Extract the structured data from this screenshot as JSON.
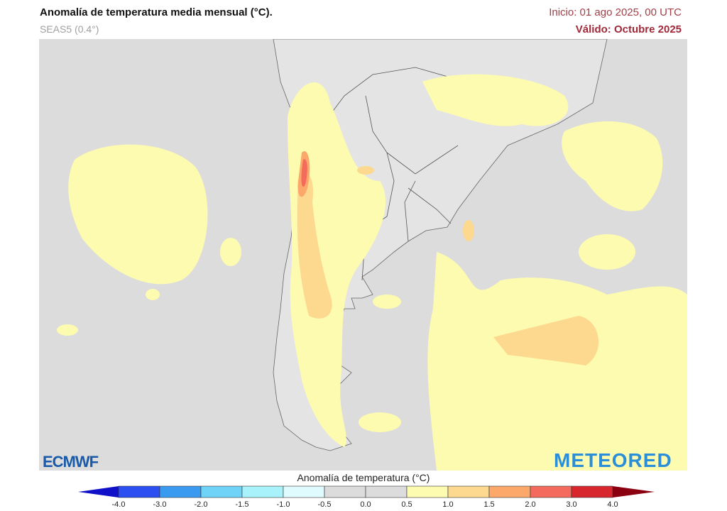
{
  "header": {
    "title": "Anomalía de temperatura media mensual (°C).",
    "model": "SEAS5 (0.4°)",
    "init": "Inicio: 01 ago 2025, 00 UTC",
    "valid": "Válido: Octubre 2025"
  },
  "colorbar": {
    "title": "Anomalía de temperatura (°C)",
    "ticks": [
      "-4.0",
      "-3.0",
      "-2.0",
      "-1.5",
      "-1.0",
      "-0.5",
      "0.0",
      "0.5",
      "1.0",
      "1.5",
      "2.0",
      "3.0",
      "4.0"
    ],
    "colors": [
      "#2b4ff0",
      "#3a9af0",
      "#6fd3f7",
      "#a8f3fb",
      "#e0fbfd",
      "#dcdcdc",
      "#dcdcdc",
      "#fdfbb0",
      "#fcd98e",
      "#fba86a",
      "#f46a5c",
      "#d8262e"
    ],
    "under_color": "#1010c8",
    "over_color": "#8b0010"
  },
  "logos": {
    "ecmwf": "ECMWF",
    "meteored": "METEORED"
  }
}
